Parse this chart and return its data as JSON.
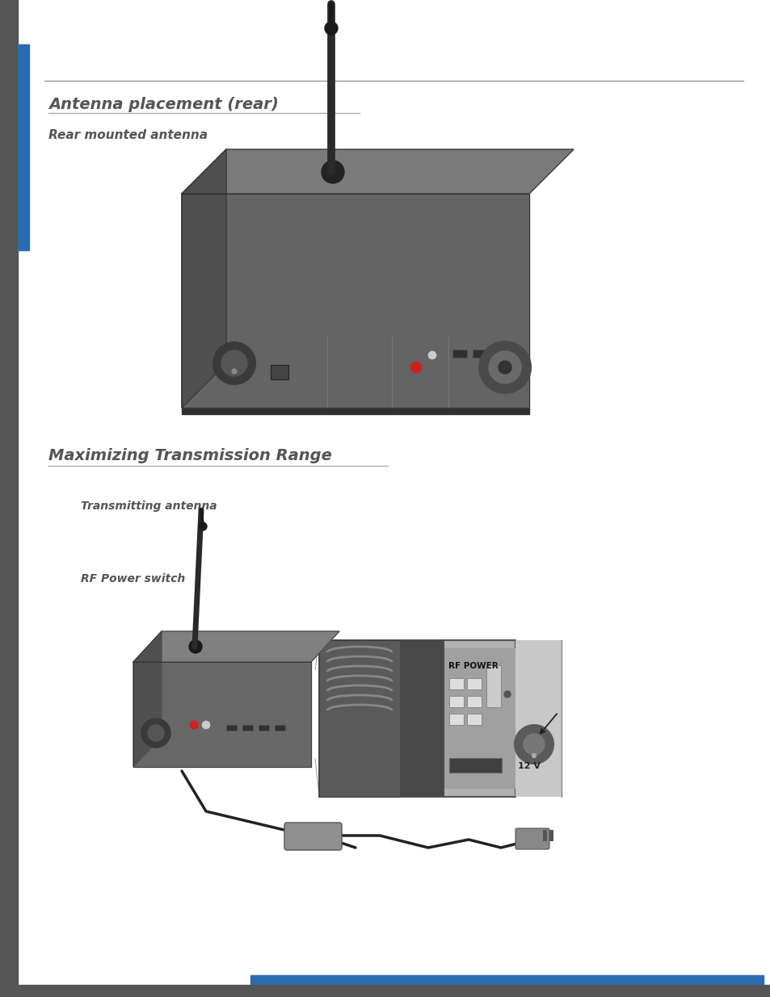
{
  "bg_color": "#ffffff",
  "left_bar_dark": "#555555",
  "left_bar_blue": "#2b6cb0",
  "top_rule_color": "#999999",
  "section_title_color": "#555555",
  "bottom_bar_blue": "#2b6cb0",
  "bottom_bar_gray": "#555555",
  "section1_title": "Antenna placement (rear)",
  "section1_subtitle": "Rear mounted antenna",
  "section2_title": "Maximizing Transmission Range",
  "label1": "Transmitting antenna",
  "label2": "RF Power switch",
  "title_fontsize": 14,
  "subtitle_fontsize": 11,
  "label_fontsize": 10,
  "device1_color": "#646464",
  "device1_top_color": "#7a7a7a",
  "device1_side_color": "#505050",
  "device2_color": "#686868",
  "device2_top_color": "#808080",
  "zoom_bg_color": "#878787",
  "zoom_panel_color": "#555555",
  "zoom_light_color": "#c0c0c0"
}
